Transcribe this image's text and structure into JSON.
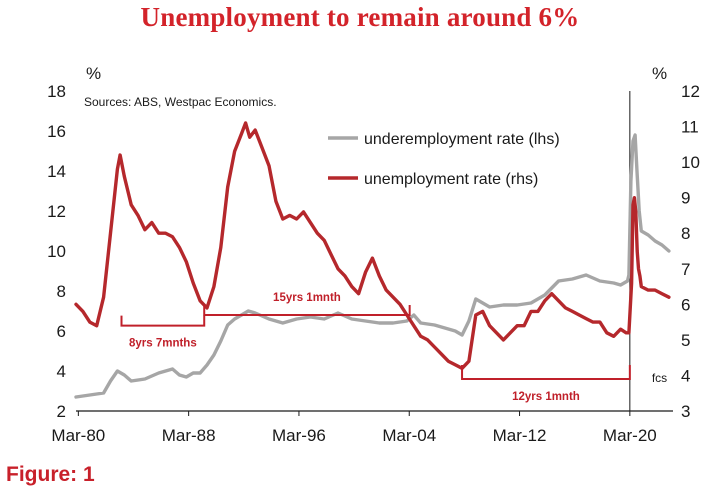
{
  "header": {
    "title": "Unemployment to remain around 6%"
  },
  "footer": {
    "figure_label": "Figure: 1"
  },
  "chart_data": {
    "type": "line",
    "title": "Unemployment to remain around 6%",
    "source": "Sources: ABS, Westpac Economics.",
    "left_unit": "%",
    "right_unit": "%",
    "ylim_left": [
      2,
      18
    ],
    "ylim_right": [
      3,
      12
    ],
    "yticks_left": [
      2,
      4,
      6,
      8,
      10,
      12,
      14,
      16,
      18
    ],
    "yticks_right": [
      3,
      4,
      5,
      6,
      7,
      8,
      9,
      10,
      11,
      12
    ],
    "xlim": [
      1980.0,
      2023.3
    ],
    "xticks": [
      {
        "label": "Mar-80",
        "x": 1980.17
      },
      {
        "label": "Mar-88",
        "x": 1988.17
      },
      {
        "label": "Mar-96",
        "x": 1996.17
      },
      {
        "label": "Mar-04",
        "x": 2004.17
      },
      {
        "label": "Mar-12",
        "x": 2012.17
      },
      {
        "label": "Mar-20",
        "x": 2020.17
      }
    ],
    "forecast_start": 2020.17,
    "forecast_label": "fcs",
    "legend_position": "top-right",
    "series": [
      {
        "name": "underemployment rate (lhs)",
        "axis": "left",
        "color": "#a6a6a6",
        "x": [
          1980.0,
          1981.0,
          1982.0,
          1982.5,
          1983.0,
          1983.5,
          1984.0,
          1985.0,
          1986.0,
          1987.0,
          1987.5,
          1988.0,
          1988.5,
          1989.0,
          1989.5,
          1990.0,
          1990.5,
          1991.0,
          1991.5,
          1992.0,
          1992.5,
          1993.0,
          1994.0,
          1995.0,
          1996.0,
          1997.0,
          1998.0,
          1999.0,
          2000.0,
          2001.0,
          2002.0,
          2003.0,
          2004.0,
          2004.5,
          2005.0,
          2006.0,
          2007.0,
          2007.5,
          2008.0,
          2008.5,
          2009.0,
          2009.5,
          2010.0,
          2011.0,
          2012.0,
          2013.0,
          2014.0,
          2015.0,
          2016.0,
          2017.0,
          2018.0,
          2019.0,
          2019.5,
          2020.0,
          2020.1,
          2020.25,
          2020.4,
          2020.55,
          2020.7,
          2020.85,
          2021.0,
          2021.5,
          2022.0,
          2022.5,
          2023.0
        ],
        "y": [
          2.7,
          2.8,
          2.9,
          3.5,
          4.0,
          3.8,
          3.5,
          3.6,
          3.9,
          4.1,
          3.8,
          3.7,
          3.9,
          3.9,
          4.3,
          4.8,
          5.5,
          6.3,
          6.6,
          6.8,
          7.0,
          6.9,
          6.6,
          6.4,
          6.6,
          6.7,
          6.6,
          6.9,
          6.6,
          6.5,
          6.4,
          6.4,
          6.5,
          6.8,
          6.4,
          6.3,
          6.1,
          6.0,
          5.8,
          6.5,
          7.6,
          7.4,
          7.2,
          7.3,
          7.3,
          7.4,
          7.8,
          8.5,
          8.6,
          8.8,
          8.5,
          8.4,
          8.3,
          8.5,
          8.8,
          13.5,
          15.5,
          15.8,
          13.8,
          12.0,
          11.0,
          10.8,
          10.5,
          10.3,
          10.0
        ]
      },
      {
        "name": "unemployment rate (rhs)",
        "axis": "right",
        "color": "#b5282c",
        "x": [
          1980.0,
          1980.5,
          1981.0,
          1981.5,
          1982.0,
          1982.5,
          1983.0,
          1983.2,
          1983.5,
          1984.0,
          1984.5,
          1985.0,
          1985.5,
          1986.0,
          1986.5,
          1987.0,
          1987.5,
          1988.0,
          1988.5,
          1989.0,
          1989.5,
          1990.0,
          1990.5,
          1991.0,
          1991.5,
          1992.0,
          1992.3,
          1992.6,
          1993.0,
          1993.5,
          1994.0,
          1994.5,
          1995.0,
          1995.5,
          1996.0,
          1996.5,
          1997.0,
          1997.5,
          1998.0,
          1998.5,
          1999.0,
          1999.5,
          2000.0,
          2000.5,
          2001.0,
          2001.5,
          2002.0,
          2002.5,
          2003.0,
          2003.5,
          2004.0,
          2004.5,
          2005.0,
          2005.5,
          2006.0,
          2006.5,
          2007.0,
          2007.5,
          2008.0,
          2008.5,
          2009.0,
          2009.5,
          2010.0,
          2010.5,
          2011.0,
          2011.5,
          2012.0,
          2012.5,
          2013.0,
          2013.5,
          2014.0,
          2014.5,
          2015.0,
          2015.5,
          2016.0,
          2016.5,
          2017.0,
          2017.5,
          2018.0,
          2018.5,
          2019.0,
          2019.5,
          2019.9,
          2020.1,
          2020.3,
          2020.4,
          2020.5,
          2020.6,
          2020.7,
          2020.8,
          2020.9,
          2021.0,
          2021.5,
          2022.0,
          2022.5,
          2023.0
        ],
        "y": [
          6.0,
          5.8,
          5.5,
          5.4,
          6.2,
          8.0,
          9.8,
          10.2,
          9.6,
          8.8,
          8.5,
          8.1,
          8.3,
          8.0,
          8.0,
          7.9,
          7.6,
          7.2,
          6.6,
          6.1,
          5.9,
          6.5,
          7.6,
          9.3,
          10.3,
          10.8,
          11.1,
          10.7,
          10.9,
          10.4,
          9.9,
          8.9,
          8.4,
          8.5,
          8.4,
          8.6,
          8.3,
          8.0,
          7.8,
          7.4,
          7.0,
          6.8,
          6.5,
          6.3,
          6.9,
          7.3,
          6.8,
          6.4,
          6.2,
          6.0,
          5.7,
          5.4,
          5.1,
          5.0,
          4.8,
          4.6,
          4.4,
          4.3,
          4.2,
          4.4,
          5.7,
          5.8,
          5.4,
          5.2,
          5.0,
          5.2,
          5.4,
          5.4,
          5.8,
          5.8,
          6.1,
          6.3,
          6.1,
          5.9,
          5.8,
          5.7,
          5.6,
          5.5,
          5.5,
          5.2,
          5.1,
          5.3,
          5.2,
          5.2,
          6.6,
          8.8,
          9.0,
          8.6,
          7.5,
          7.0,
          6.8,
          6.5,
          6.4,
          6.4,
          6.3,
          6.2
        ]
      }
    ],
    "annotations": [
      {
        "text": "8yrs 7mnths",
        "start": 1983.3,
        "end": 1989.3,
        "level": 5.4
      },
      {
        "text": "15yrs 1mnth",
        "start": 1989.3,
        "end": 2004.2,
        "level": 5.7
      },
      {
        "text": "12yrs 1mnth",
        "start": 2008.0,
        "end": 2020.17,
        "level": 3.9
      }
    ]
  }
}
